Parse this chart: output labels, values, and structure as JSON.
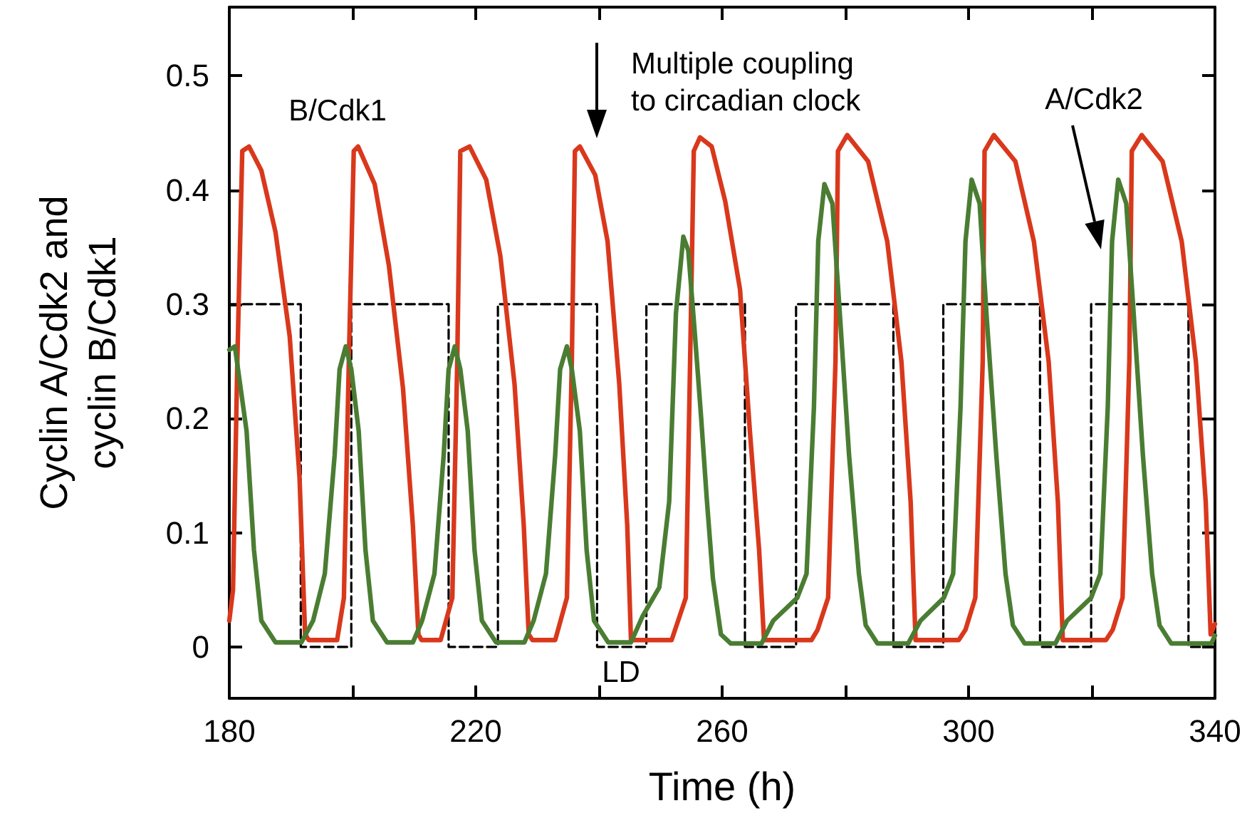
{
  "chart_data": {
    "type": "line",
    "xlabel": "Time (h)",
    "ylabel": "Cyclin A/Cdk2 and\ncyclin B/Cdk1",
    "xlim": [
      180,
      340
    ],
    "ylim": [
      -0.045,
      0.56
    ],
    "xticks": [
      180,
      {
        "value": 200,
        "label": null
      },
      220,
      {
        "value": 240,
        "label": null
      },
      260,
      {
        "value": 280,
        "label": null
      },
      300,
      {
        "value": 320,
        "label": null
      },
      340
    ],
    "yticks": [
      0,
      0.1,
      0.2,
      0.3,
      0.4,
      0.5
    ],
    "marker": "none",
    "line_style": "solid",
    "series": [
      {
        "color": "#d9381c",
        "x": [
          180,
          180.6,
          181.3,
          182.1,
          183.2,
          185.2,
          187.5,
          189.8,
          191.4,
          192.3,
          192.9,
          197.5,
          198.6,
          199.4,
          200.2,
          200.9,
          203.6,
          205.9,
          208.2,
          209.8,
          210.7,
          211.2,
          214.3,
          216.2,
          217,
          217.5,
          219,
          221.7,
          224,
          226.3,
          227.8,
          228.6,
          229.2,
          232.9,
          234.8,
          235.6,
          236.1,
          236.9,
          239.4,
          241.4,
          243.3,
          244.6,
          245.2,
          251.8,
          254.1,
          254.8,
          255.4,
          256.4,
          258.3,
          260.5,
          262.9,
          264.5,
          266,
          266.8,
          274.5,
          275.5,
          277.2,
          278.4,
          278.8,
          280.3,
          283.7,
          286.8,
          289.1,
          290.6,
          291.4,
          298.4,
          299.5,
          301.1,
          302.3,
          302.6,
          304.1,
          307.6,
          310.6,
          313,
          314.5,
          315.3,
          322.3,
          323.4,
          325,
          326.1,
          326.5,
          328.1,
          331.5,
          334.6,
          336.9,
          338.5,
          339.3,
          340
        ],
        "values": [
          0.023,
          0.05,
          0.25,
          0.434,
          0.438,
          0.417,
          0.363,
          0.272,
          0.148,
          0.011,
          0.006,
          0.006,
          0.043,
          0.25,
          0.434,
          0.438,
          0.405,
          0.334,
          0.226,
          0.106,
          0.011,
          0.006,
          0.006,
          0.043,
          0.25,
          0.434,
          0.438,
          0.409,
          0.342,
          0.23,
          0.106,
          0.011,
          0.006,
          0.006,
          0.043,
          0.25,
          0.434,
          0.438,
          0.413,
          0.355,
          0.23,
          0.106,
          0.006,
          0.006,
          0.043,
          0.25,
          0.434,
          0.446,
          0.438,
          0.39,
          0.313,
          0.189,
          0.085,
          0.006,
          0.006,
          0.015,
          0.043,
          0.25,
          0.434,
          0.448,
          0.425,
          0.355,
          0.25,
          0.127,
          0.006,
          0.006,
          0.015,
          0.043,
          0.25,
          0.434,
          0.448,
          0.425,
          0.355,
          0.25,
          0.127,
          0.006,
          0.006,
          0.015,
          0.043,
          0.25,
          0.434,
          0.448,
          0.425,
          0.355,
          0.25,
          0.127,
          0.011,
          0.02
        ]
      },
      {
        "color": "#4a7d32",
        "x": [
          180,
          180.9,
          182.8,
          184,
          185.2,
          187.5,
          191.7,
          193.6,
          195.5,
          197.1,
          197.9,
          198.9,
          199.8,
          201,
          202.1,
          203.3,
          205.6,
          209.8,
          211.3,
          213.3,
          214.8,
          215.6,
          216.6,
          217.5,
          218.7,
          219.8,
          221,
          223.3,
          227.9,
          229.4,
          231.4,
          232.9,
          233.7,
          234.8,
          235.6,
          236.9,
          238,
          239.2,
          241.5,
          245.2,
          247.1,
          249.8,
          251.4,
          252.5,
          253.7,
          254.5,
          255.6,
          256.6,
          257.5,
          258.5,
          259.8,
          261.4,
          266.4,
          268.3,
          272.2,
          273.7,
          274.9,
          275.6,
          276.6,
          277.9,
          279.1,
          280.6,
          282.2,
          283.3,
          285.2,
          290.2,
          292.2,
          296,
          297.5,
          298.7,
          299.5,
          300.5,
          301.8,
          302.9,
          304.5,
          306,
          307.2,
          309.1,
          314.1,
          316,
          319.9,
          321.4,
          322.6,
          323.3,
          324.3,
          325.6,
          326.8,
          328.3,
          329.8,
          331,
          332.9,
          339.4,
          340
        ],
        "values": [
          0.26,
          0.263,
          0.189,
          0.085,
          0.023,
          0.004,
          0.004,
          0.023,
          0.064,
          0.168,
          0.243,
          0.263,
          0.243,
          0.189,
          0.085,
          0.023,
          0.004,
          0.004,
          0.023,
          0.064,
          0.168,
          0.243,
          0.263,
          0.243,
          0.189,
          0.085,
          0.023,
          0.004,
          0.004,
          0.023,
          0.064,
          0.168,
          0.243,
          0.263,
          0.243,
          0.189,
          0.085,
          0.023,
          0.004,
          0.004,
          0.027,
          0.052,
          0.127,
          0.292,
          0.359,
          0.347,
          0.272,
          0.2,
          0.13,
          0.06,
          0.011,
          0.003,
          0.003,
          0.023,
          0.043,
          0.064,
          0.21,
          0.355,
          0.405,
          0.388,
          0.292,
          0.168,
          0.064,
          0.019,
          0.003,
          0.003,
          0.023,
          0.043,
          0.064,
          0.21,
          0.355,
          0.409,
          0.388,
          0.292,
          0.168,
          0.064,
          0.019,
          0.003,
          0.003,
          0.023,
          0.043,
          0.064,
          0.21,
          0.355,
          0.409,
          0.388,
          0.292,
          0.168,
          0.064,
          0.019,
          0.003,
          0.003,
          0.01
        ]
      },
      {
        "color": "#000000",
        "line_style": "dashed",
        "x": [
          180,
          191.6,
          191.6,
          199.8,
          199.8,
          215.6,
          215.6,
          223.6,
          223.6,
          239.7,
          239.7,
          247.7,
          247.7,
          263.7,
          263.7,
          272,
          272,
          287.8,
          287.8,
          295.9,
          295.9,
          311.6,
          311.6,
          319.9,
          319.9,
          335.7,
          335.7,
          340
        ],
        "values": [
          0.3,
          0.3,
          0,
          0,
          0.3,
          0.3,
          0,
          0,
          0.3,
          0.3,
          0,
          0,
          0.3,
          0.3,
          0,
          0,
          0.3,
          0.3,
          0,
          0,
          0.3,
          0.3,
          0,
          0,
          0.3,
          0.3,
          0,
          0
        ]
      }
    ],
    "annotations": [
      "B/Cdk1",
      "Multiple coupling\nto circadian clock",
      "A/Cdk2",
      "LD"
    ]
  }
}
